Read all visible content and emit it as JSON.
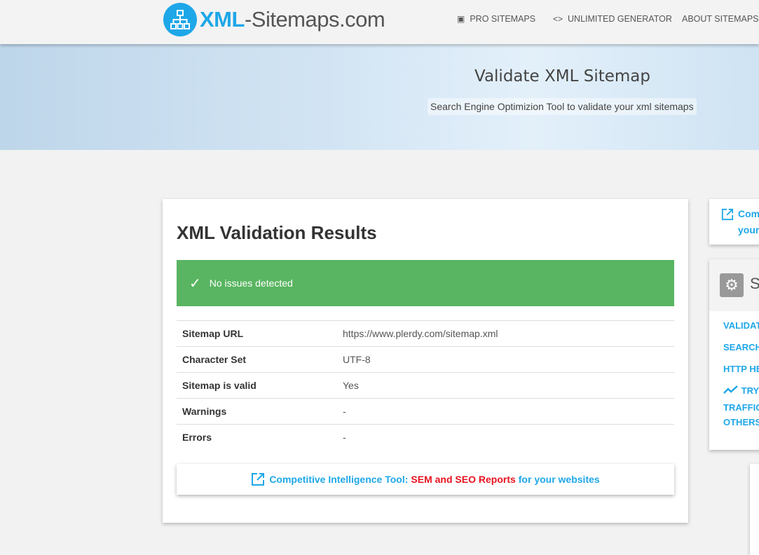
{
  "header": {
    "logo_brand": "XML",
    "logo_rest": "-Sitemaps.com",
    "nav": [
      {
        "label": "PRO SITEMAPS",
        "icon": "archive-icon"
      },
      {
        "label": "UNLIMITED GENERATOR",
        "icon": "code-icon"
      },
      {
        "label": "ABOUT SITEMAPS"
      }
    ]
  },
  "hero": {
    "title": "Validate XML Sitemap",
    "subtitle": "Search Engine Optimizion Tool to validate your xml sitemaps"
  },
  "results": {
    "title": "XML Validation Results",
    "alert": "No issues detected",
    "rows": [
      {
        "key": "Sitemap URL",
        "value": "https://www.plerdy.com/sitemap.xml"
      },
      {
        "key": "Character Set",
        "value": "UTF-8"
      },
      {
        "key": "Sitemap is valid",
        "value": "Yes"
      },
      {
        "key": "Warnings",
        "value": "-"
      },
      {
        "key": "Errors",
        "value": "-"
      }
    ],
    "promo": {
      "part1": "Competitive Intelligence Tool:",
      "part2": "SEM and SEO Reports",
      "part3": "for your websites"
    }
  },
  "sidebar": {
    "promo_line1": "Com",
    "promo_line2": "your",
    "box_title": "S",
    "links": [
      "VALIDAT",
      "SEARCH",
      "HTTP HE",
      "TRY",
      "TRAFFIC",
      "OTHERS"
    ]
  },
  "colors": {
    "accent": "#1ea7e8",
    "success": "#59b561",
    "highlight": "#e8121e"
  }
}
